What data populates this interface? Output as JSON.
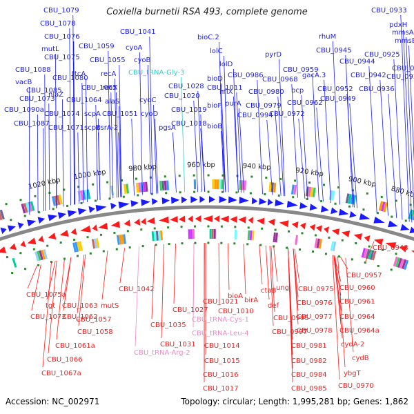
{
  "title": "Coxiella burnetii RSA 493, complete genome",
  "footer": {
    "accession": "Accession: NC_002971",
    "summary": "Topology: circular; Length: 1,995,281 bp; Genes: 1,862"
  },
  "colors": {
    "forward_gene": "#1a1aff",
    "reverse_gene": "#ff1a1a",
    "trna_forward": "#33cccc",
    "trna_reverse": "#ee88cc",
    "backbone": "#888888",
    "tick": "#2a8a2a"
  },
  "scale_labels": [
    "1020 kbp",
    "1000 kbp",
    "980 kbp",
    "960 kbp",
    "940 kbp",
    "920 kbp",
    "900 kbp",
    "880 kbp"
  ],
  "top_labels": [
    {
      "text": "CBU_1079",
      "kind": "gene"
    },
    {
      "text": "CBU_1078",
      "kind": "gene"
    },
    {
      "text": "CBU_1076",
      "kind": "gene"
    },
    {
      "text": "mutL",
      "kind": "gene"
    },
    {
      "text": "CBU_1075",
      "kind": "gene"
    },
    {
      "text": "CBU_1088",
      "kind": "gene"
    },
    {
      "text": "CBU_1080",
      "kind": "gene"
    },
    {
      "text": "vacB",
      "kind": "gene"
    },
    {
      "text": "CBU_1085",
      "kind": "gene"
    },
    {
      "text": "nlaZ",
      "kind": "gene"
    },
    {
      "text": "CBU_1073",
      "kind": "gene"
    },
    {
      "text": "CBU_1090a",
      "kind": "gene"
    },
    {
      "text": "CBU_1074",
      "kind": "gene"
    },
    {
      "text": "CBU_1087",
      "kind": "gene"
    },
    {
      "text": "CBU_1071",
      "kind": "gene"
    },
    {
      "text": "ttcA",
      "kind": "gene"
    },
    {
      "text": "CBU_1065",
      "kind": "gene"
    },
    {
      "text": "CBU_1064",
      "kind": "gene"
    },
    {
      "text": "scpA",
      "kind": "gene"
    },
    {
      "text": "scpB",
      "kind": "gene"
    },
    {
      "text": "CBU_1059",
      "kind": "gene"
    },
    {
      "text": "CBU_1055",
      "kind": "gene"
    },
    {
      "text": "recA",
      "kind": "gene"
    },
    {
      "text": "recX",
      "kind": "gene"
    },
    {
      "text": "alaS",
      "kind": "gene"
    },
    {
      "text": "CBU_1051",
      "kind": "gene"
    },
    {
      "text": "csrA-2",
      "kind": "gene"
    },
    {
      "text": "CBU_1041",
      "kind": "gene"
    },
    {
      "text": "cyoA",
      "kind": "gene"
    },
    {
      "text": "cyoB",
      "kind": "gene"
    },
    {
      "text": "CBU_tRNA-Gly-3",
      "kind": "trna"
    },
    {
      "text": "cyoC",
      "kind": "gene"
    },
    {
      "text": "cyoD",
      "kind": "gene"
    },
    {
      "text": "CBU_1028",
      "kind": "gene"
    },
    {
      "text": "pgsA",
      "kind": "gene"
    },
    {
      "text": "CBU_1020",
      "kind": "gene"
    },
    {
      "text": "CBU_1019",
      "kind": "gene"
    },
    {
      "text": "CBU_1018",
      "kind": "gene"
    },
    {
      "text": "bioC.2",
      "kind": "gene"
    },
    {
      "text": "lolC",
      "kind": "gene"
    },
    {
      "text": "lolD",
      "kind": "gene"
    },
    {
      "text": "CBU_1011",
      "kind": "gene"
    },
    {
      "text": "bioF",
      "kind": "gene"
    },
    {
      "text": "bioB",
      "kind": "gene"
    },
    {
      "text": "bioD",
      "kind": "gene"
    },
    {
      "text": "nflX",
      "kind": "gene"
    },
    {
      "text": "purA",
      "kind": "gene"
    },
    {
      "text": "CBU_0994",
      "kind": "gene"
    },
    {
      "text": "CBU_0986",
      "kind": "gene"
    },
    {
      "text": "CBU_0980",
      "kind": "gene"
    },
    {
      "text": "CBU_0979",
      "kind": "gene"
    },
    {
      "text": "pyrD",
      "kind": "gene"
    },
    {
      "text": "CBU_0968",
      "kind": "gene"
    },
    {
      "text": "CBU_0959",
      "kind": "gene"
    },
    {
      "text": "gacA.3",
      "kind": "gene"
    },
    {
      "text": "bcp",
      "kind": "gene"
    },
    {
      "text": "CBU_0962",
      "kind": "gene"
    },
    {
      "text": "CBU_0972",
      "kind": "gene"
    },
    {
      "text": "CBU_0952",
      "kind": "gene"
    },
    {
      "text": "CBU_0949",
      "kind": "gene"
    },
    {
      "text": "rhuM",
      "kind": "gene"
    },
    {
      "text": "CBU_0945",
      "kind": "gene"
    },
    {
      "text": "CBU_0944",
      "kind": "gene"
    },
    {
      "text": "CBU_0942",
      "kind": "gene"
    },
    {
      "text": "CBU_0936",
      "kind": "gene"
    },
    {
      "text": "CBU_0933",
      "kind": "gene"
    },
    {
      "text": "pdxH",
      "kind": "gene"
    },
    {
      "text": "mmsA",
      "kind": "gene"
    },
    {
      "text": "mmsB",
      "kind": "gene"
    },
    {
      "text": "CBU_0925",
      "kind": "gene"
    },
    {
      "text": "CBU_0924",
      "kind": "gene"
    },
    {
      "text": "CBU_0922",
      "kind": "gene"
    }
  ],
  "bottom_labels": [
    {
      "text": "CBU_1075a",
      "kind": "gene"
    },
    {
      "text": "tgt",
      "kind": "gene"
    },
    {
      "text": "CBU_1073",
      "kind": "gene"
    },
    {
      "text": "CBU_1063",
      "kind": "gene"
    },
    {
      "text": "CBU_1062",
      "kind": "gene"
    },
    {
      "text": "mutS",
      "kind": "gene"
    },
    {
      "text": "CBU_1057",
      "kind": "gene"
    },
    {
      "text": "CBU_1058",
      "kind": "gene"
    },
    {
      "text": "CBU_1061a",
      "kind": "gene"
    },
    {
      "text": "CBU_1066",
      "kind": "gene"
    },
    {
      "text": "CBU_1067a",
      "kind": "gene"
    },
    {
      "text": "CBU_1042",
      "kind": "gene"
    },
    {
      "text": "CBU_1027",
      "kind": "gene"
    },
    {
      "text": "CBU_1035",
      "kind": "gene"
    },
    {
      "text": "CBU_1031",
      "kind": "gene"
    },
    {
      "text": "CBU_tRNA-Arg-2",
      "kind": "trna"
    },
    {
      "text": "CBU_1021",
      "kind": "gene"
    },
    {
      "text": "CBU_1010",
      "kind": "gene"
    },
    {
      "text": "CBU_tRNA-Cys-1",
      "kind": "trna"
    },
    {
      "text": "CBU_tRNA-Leu-4",
      "kind": "trna"
    },
    {
      "text": "CBU_1014",
      "kind": "gene"
    },
    {
      "text": "CBU_1015",
      "kind": "gene"
    },
    {
      "text": "CBU_1016",
      "kind": "gene"
    },
    {
      "text": "CBU_1017",
      "kind": "gene"
    },
    {
      "text": "bioA",
      "kind": "gene"
    },
    {
      "text": "birA",
      "kind": "gene"
    },
    {
      "text": "ctaB",
      "kind": "gene"
    },
    {
      "text": "def",
      "kind": "gene"
    },
    {
      "text": "CBU_0995",
      "kind": "gene"
    },
    {
      "text": "CBU_0997",
      "kind": "gene"
    },
    {
      "text": "ung",
      "kind": "gene"
    },
    {
      "text": "CBU_0975",
      "kind": "gene"
    },
    {
      "text": "CBU_0976",
      "kind": "gene"
    },
    {
      "text": "CBU_0977",
      "kind": "gene"
    },
    {
      "text": "CBU_0978",
      "kind": "gene"
    },
    {
      "text": "CBU_0981",
      "kind": "gene"
    },
    {
      "text": "CBU_0982",
      "kind": "gene"
    },
    {
      "text": "CBU_0984",
      "kind": "gene"
    },
    {
      "text": "CBU_0985",
      "kind": "gene"
    },
    {
      "text": "CBU_0957",
      "kind": "gene"
    },
    {
      "text": "CBU_0960",
      "kind": "gene"
    },
    {
      "text": "CBU_0961",
      "kind": "gene"
    },
    {
      "text": "CBU_0964",
      "kind": "gene"
    },
    {
      "text": "CBU_0964a",
      "kind": "gene"
    },
    {
      "text": "cydA-2",
      "kind": "gene"
    },
    {
      "text": "cydB",
      "kind": "gene"
    },
    {
      "text": "ybgT",
      "kind": "gene"
    },
    {
      "text": "CBU_0970",
      "kind": "gene"
    },
    {
      "text": "CBU_0948",
      "kind": "gene"
    }
  ]
}
